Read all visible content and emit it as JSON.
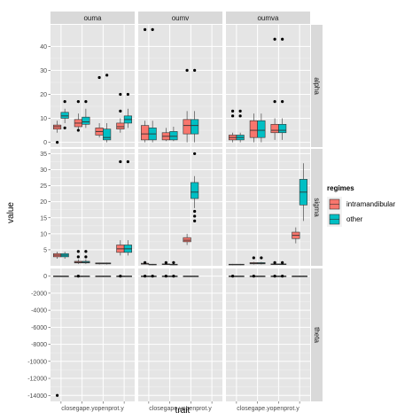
{
  "chart_data": {
    "type": "boxplot",
    "xlabel": "trait",
    "ylabel": "value",
    "categories": [
      "closegape.y",
      "open",
      "prot.y"
    ],
    "x_tick_labels": [
      "closegape.y",
      "open",
      "prot.y"
    ],
    "columns": [
      "ouma",
      "oumv",
      "oumva"
    ],
    "rows": [
      "alpha",
      "sigma",
      "theta"
    ],
    "grid": true,
    "legend": {
      "title": "regimes",
      "placement": "right",
      "entries": [
        {
          "name": "intramandibular",
          "color": "#F8766D"
        },
        {
          "name": "other",
          "color": "#00BFC4"
        }
      ]
    },
    "row_axes": {
      "alpha": {
        "ylim": [
          -2,
          49
        ],
        "ticks": [
          "0",
          "10",
          "20",
          "30",
          "40"
        ],
        "tick_values": [
          0,
          10,
          20,
          30,
          40
        ]
      },
      "sigma": {
        "ylim": [
          0,
          36.5
        ],
        "ticks": [
          "5",
          "10",
          "15",
          "20",
          "25",
          "30",
          "35"
        ],
        "tick_values": [
          5,
          10,
          15,
          20,
          25,
          30,
          35
        ]
      },
      "theta": {
        "ylim": [
          -14700,
          900
        ],
        "ticks": [
          "0",
          "-2000",
          "-4000",
          "-6000",
          "-8000",
          "-10000",
          "-12000",
          "-14000"
        ],
        "tick_values": [
          0,
          -2000,
          -4000,
          -6000,
          -8000,
          -10000,
          -12000,
          -14000
        ]
      }
    },
    "panels": [
      {
        "col": "ouma",
        "row": "alpha",
        "boxes": [
          {
            "cat": 0,
            "group": "intramandibular",
            "q": [
              4,
              5.5,
              6.5,
              7.2,
              9
            ],
            "outliers": [
              0
            ]
          },
          {
            "cat": 0,
            "group": "other",
            "q": [
              8,
              10,
              11,
              12.5,
              14
            ],
            "outliers": [
              6,
              17
            ]
          },
          {
            "cat": 1,
            "group": "intramandibular",
            "q": [
              5,
              6.5,
              8,
              9.5,
              12
            ],
            "outliers": [
              17,
              5
            ]
          },
          {
            "cat": 1,
            "group": "other",
            "q": [
              6,
              7.5,
              8.5,
              10.5,
              14
            ],
            "outliers": [
              17
            ]
          },
          {
            "cat": 2,
            "group": "intramandibular",
            "q": [
              2,
              3,
              4.5,
              6,
              8
            ],
            "outliers": [
              27
            ]
          },
          {
            "cat": 2,
            "group": "other",
            "q": [
              0,
              1,
              2,
              5.5,
              8
            ],
            "outliers": [
              28
            ]
          },
          {
            "cat": 3,
            "group": "intramandibular",
            "q": [
              4,
              5.5,
              6.5,
              8,
              10
            ],
            "outliers": [
              13,
              20
            ]
          },
          {
            "cat": 3,
            "group": "other",
            "q": [
              6,
              8,
              9.5,
              11,
              14
            ],
            "outliers": [
              20
            ]
          }
        ]
      },
      {
        "col": "oumv",
        "row": "alpha",
        "boxes": [
          {
            "cat": 0,
            "group": "intramandibular",
            "q": [
              0,
              1,
              3.5,
              7,
              9
            ],
            "outliers": [
              47
            ]
          },
          {
            "cat": 0,
            "group": "other",
            "q": [
              0,
              1,
              3.5,
              6,
              9
            ],
            "outliers": [
              47
            ]
          },
          {
            "cat": 1,
            "group": "intramandibular",
            "q": [
              0.5,
              1,
              2.5,
              4,
              6
            ],
            "outliers": []
          },
          {
            "cat": 1,
            "group": "other",
            "q": [
              0.5,
              1,
              2.5,
              4.5,
              6.5
            ],
            "outliers": []
          },
          {
            "cat": 2,
            "group": "intramandibular",
            "q": [
              0,
              3.5,
              7,
              9.5,
              13
            ],
            "outliers": [
              30
            ]
          },
          {
            "cat": 2,
            "group": "other",
            "q": [
              0,
              3.5,
              7,
              9.5,
              13
            ],
            "outliers": [
              30
            ]
          }
        ]
      },
      {
        "col": "oumva",
        "row": "alpha",
        "boxes": [
          {
            "cat": 0,
            "group": "intramandibular",
            "q": [
              0,
              1,
              2,
              3,
              4
            ],
            "outliers": [
              11,
              13
            ]
          },
          {
            "cat": 0,
            "group": "other",
            "q": [
              0,
              1,
              2,
              3,
              4
            ],
            "outliers": [
              11,
              13
            ]
          },
          {
            "cat": 1,
            "group": "intramandibular",
            "q": [
              0,
              2,
              5,
              9,
              12
            ],
            "outliers": []
          },
          {
            "cat": 1,
            "group": "other",
            "q": [
              0,
              2,
              5,
              9,
              12
            ],
            "outliers": []
          },
          {
            "cat": 2,
            "group": "intramandibular",
            "q": [
              1,
              4,
              5,
              7.5,
              10
            ],
            "outliers": [
              17,
              43
            ]
          },
          {
            "cat": 2,
            "group": "other",
            "q": [
              1,
              4,
              5,
              7.5,
              10
            ],
            "outliers": [
              17,
              43
            ]
          }
        ]
      },
      {
        "col": "ouma",
        "row": "sigma",
        "boxes": [
          {
            "cat": 0,
            "group": "intramandibular",
            "q": [
              2.2,
              2.8,
              3.3,
              3.8,
              4.4
            ],
            "outliers": []
          },
          {
            "cat": 0,
            "group": "other",
            "q": [
              2.2,
              2.8,
              3.3,
              3.8,
              4.4
            ],
            "outliers": []
          },
          {
            "cat": 1,
            "group": "intramandibular",
            "q": [
              0.6,
              0.9,
              1.1,
              1.4,
              2
            ],
            "outliers": [
              4.5,
              2.8
            ]
          },
          {
            "cat": 1,
            "group": "other",
            "q": [
              0.6,
              0.9,
              1.1,
              1.4,
              2
            ],
            "outliers": [
              4.5,
              2.8
            ]
          },
          {
            "cat": 2,
            "group": "intramandibular",
            "q": [
              0.4,
              0.6,
              0.8,
              0.9,
              1
            ],
            "outliers": []
          },
          {
            "cat": 2,
            "group": "other",
            "q": [
              0.4,
              0.6,
              0.8,
              0.9,
              1
            ],
            "outliers": []
          },
          {
            "cat": 3,
            "group": "intramandibular",
            "q": [
              3.2,
              4.2,
              5.3,
              6.5,
              8
            ],
            "outliers": [
              32.5
            ]
          },
          {
            "cat": 3,
            "group": "other",
            "q": [
              3.2,
              4.2,
              5.3,
              6.5,
              8
            ],
            "outliers": [
              32.5
            ]
          }
        ]
      },
      {
        "col": "oumv",
        "row": "sigma",
        "boxes": [
          {
            "cat": 0,
            "group": "intramandibular",
            "q": [
              0.4,
              0.5,
              0.7,
              0.8,
              0.9
            ],
            "outliers": [
              1
            ]
          },
          {
            "cat": 0,
            "group": "other",
            "q": [
              0.2,
              0.3,
              0.4,
              0.5,
              0.6
            ],
            "outliers": []
          },
          {
            "cat": 1,
            "group": "intramandibular",
            "q": [
              0.3,
              0.4,
              0.5,
              0.6,
              0.7
            ],
            "outliers": [
              1
            ]
          },
          {
            "cat": 1,
            "group": "other",
            "q": [
              0.2,
              0.3,
              0.4,
              0.5,
              0.6
            ],
            "outliers": [
              1
            ]
          },
          {
            "cat": 2,
            "group": "intramandibular",
            "q": [
              6.5,
              7.5,
              8,
              8.8,
              10
            ],
            "outliers": []
          },
          {
            "cat": 2,
            "group": "other",
            "q": [
              18,
              21,
              23,
              26,
              28
            ],
            "outliers": [
              35,
              14,
              15.5,
              17
            ]
          }
        ]
      },
      {
        "col": "oumva",
        "row": "sigma",
        "boxes": [
          {
            "cat": 0,
            "group": "intramandibular",
            "q": [
              0.2,
              0.3,
              0.4,
              0.5,
              0.6
            ],
            "outliers": []
          },
          {
            "cat": 0,
            "group": "other",
            "q": [
              0.2,
              0.3,
              0.4,
              0.5,
              0.6
            ],
            "outliers": []
          },
          {
            "cat": 1,
            "group": "intramandibular",
            "q": [
              0.4,
              0.6,
              0.8,
              1,
              1.2
            ],
            "outliers": [
              2.5
            ]
          },
          {
            "cat": 1,
            "group": "other",
            "q": [
              0.4,
              0.6,
              0.8,
              1,
              1.2
            ],
            "outliers": [
              2.5
            ]
          },
          {
            "cat": 2,
            "group": "intramandibular",
            "q": [
              0.3,
              0.4,
              0.5,
              0.6,
              0.7
            ],
            "outliers": [
              1
            ]
          },
          {
            "cat": 2,
            "group": "other",
            "q": [
              0.3,
              0.4,
              0.5,
              0.6,
              0.7
            ],
            "outliers": [
              1
            ]
          },
          {
            "cat": 3,
            "group": "intramandibular",
            "q": [
              7,
              8.5,
              9.5,
              10.5,
              12
            ],
            "outliers": []
          },
          {
            "cat": 3,
            "group": "other",
            "q": [
              14,
              19,
              23,
              27,
              32
            ],
            "outliers": []
          }
        ]
      },
      {
        "col": "ouma",
        "row": "theta",
        "boxes": [
          {
            "cat": 0,
            "group": "intramandibular",
            "q": [
              -60,
              -20,
              0,
              20,
              60
            ],
            "outliers": [
              -14000
            ]
          },
          {
            "cat": 0,
            "group": "other",
            "q": [
              -40,
              -15,
              0,
              15,
              40
            ],
            "outliers": []
          },
          {
            "cat": 1,
            "group": "intramandibular",
            "q": [
              -40,
              -15,
              0,
              15,
              40
            ],
            "outliers": [
              0
            ]
          },
          {
            "cat": 1,
            "group": "other",
            "q": [
              -40,
              -15,
              0,
              15,
              40
            ],
            "outliers": []
          },
          {
            "cat": 2,
            "group": "intramandibular",
            "q": [
              -40,
              -15,
              0,
              15,
              40
            ],
            "outliers": []
          },
          {
            "cat": 2,
            "group": "other",
            "q": [
              -40,
              -15,
              0,
              15,
              40
            ],
            "outliers": []
          },
          {
            "cat": 3,
            "group": "intramandibular",
            "q": [
              -40,
              -15,
              0,
              15,
              40
            ],
            "outliers": [
              0
            ]
          },
          {
            "cat": 3,
            "group": "other",
            "q": [
              -40,
              -15,
              0,
              15,
              40
            ],
            "outliers": []
          }
        ]
      },
      {
        "col": "oumv",
        "row": "theta",
        "boxes": [
          {
            "cat": 0,
            "group": "intramandibular",
            "q": [
              -40,
              -15,
              0,
              15,
              40
            ],
            "outliers": [
              0
            ]
          },
          {
            "cat": 0,
            "group": "other",
            "q": [
              -40,
              -15,
              0,
              15,
              40
            ],
            "outliers": [
              0
            ]
          },
          {
            "cat": 1,
            "group": "intramandibular",
            "q": [
              -40,
              -15,
              0,
              15,
              40
            ],
            "outliers": [
              0
            ]
          },
          {
            "cat": 1,
            "group": "other",
            "q": [
              -40,
              -15,
              0,
              15,
              40
            ],
            "outliers": [
              0
            ]
          },
          {
            "cat": 2,
            "group": "intramandibular",
            "q": [
              -40,
              -15,
              0,
              15,
              40
            ],
            "outliers": []
          },
          {
            "cat": 2,
            "group": "other",
            "q": [
              -40,
              -15,
              0,
              15,
              40
            ],
            "outliers": []
          }
        ]
      },
      {
        "col": "oumva",
        "row": "theta",
        "boxes": [
          {
            "cat": 0,
            "group": "intramandibular",
            "q": [
              -40,
              -15,
              0,
              15,
              40
            ],
            "outliers": [
              0
            ]
          },
          {
            "cat": 0,
            "group": "other",
            "q": [
              -40,
              -15,
              0,
              15,
              40
            ],
            "outliers": []
          },
          {
            "cat": 1,
            "group": "intramandibular",
            "q": [
              -40,
              -15,
              0,
              15,
              40
            ],
            "outliers": [
              0
            ]
          },
          {
            "cat": 1,
            "group": "other",
            "q": [
              -40,
              -15,
              0,
              15,
              40
            ],
            "outliers": []
          },
          {
            "cat": 2,
            "group": "intramandibular",
            "q": [
              -40,
              -15,
              0,
              15,
              40
            ],
            "outliers": [
              0
            ]
          },
          {
            "cat": 2,
            "group": "other",
            "q": [
              -40,
              -15,
              0,
              15,
              40
            ],
            "outliers": [
              0
            ]
          },
          {
            "cat": 3,
            "group": "intramandibular",
            "q": [
              -40,
              -15,
              0,
              15,
              40
            ],
            "outliers": []
          },
          {
            "cat": 3,
            "group": "other",
            "q": [
              -40,
              -15,
              0,
              15,
              40
            ],
            "outliers": []
          }
        ]
      }
    ]
  }
}
